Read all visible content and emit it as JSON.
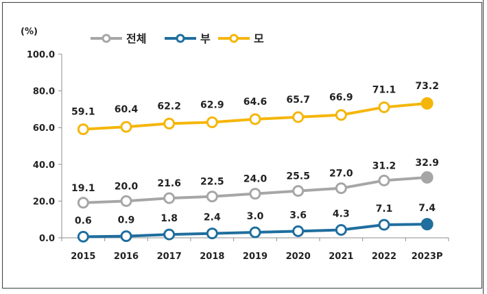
{
  "chart_data": {
    "type": "line",
    "y_unit_label": "(%)",
    "categories": [
      "2015",
      "2016",
      "2017",
      "2018",
      "2019",
      "2020",
      "2021",
      "2022",
      "2023P"
    ],
    "ylim": [
      0,
      100
    ],
    "yticks": [
      0,
      20,
      40,
      60,
      80,
      100
    ],
    "ytick_labels": [
      "0.0",
      "20.0",
      "40.0",
      "60.0",
      "80.0",
      "100.0"
    ],
    "legend_position": "top-left",
    "grid": false,
    "series": [
      {
        "name": "전체",
        "color": "#a6a6a6",
        "values": [
          19.1,
          20.0,
          21.6,
          22.5,
          24.0,
          25.5,
          27.0,
          31.2,
          32.9
        ],
        "labels": [
          "19.1",
          "20.0",
          "21.6",
          "22.5",
          "24.0",
          "25.5",
          "27.0",
          "31.2",
          "32.9"
        ]
      },
      {
        "name": "부",
        "color": "#1f6e9e",
        "values": [
          0.6,
          0.9,
          1.8,
          2.4,
          3.0,
          3.6,
          4.3,
          7.1,
          7.4
        ],
        "labels": [
          "0.6",
          "0.9",
          "1.8",
          "2.4",
          "3.0",
          "3.6",
          "4.3",
          "7.1",
          "7.4"
        ]
      },
      {
        "name": "모",
        "color": "#f5b60a",
        "values": [
          59.1,
          60.4,
          62.2,
          62.9,
          64.6,
          65.7,
          66.9,
          71.1,
          73.2
        ],
        "labels": [
          "59.1",
          "60.4",
          "62.2",
          "62.9",
          "64.6",
          "65.7",
          "66.9",
          "71.1",
          "73.2"
        ]
      }
    ]
  }
}
